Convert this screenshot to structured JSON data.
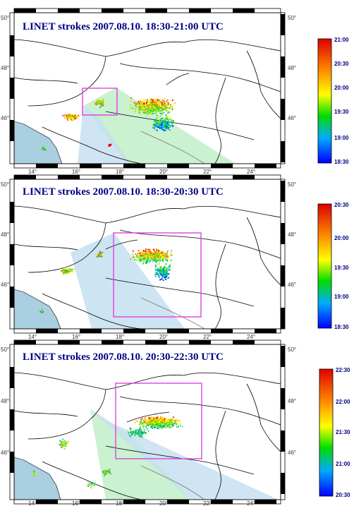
{
  "colors": {
    "title": "#000088",
    "frame": "#000000",
    "box": "#e040e0",
    "sea": "#a9cfe0",
    "cone_green": "#b8ecc0",
    "cone_blue": "#c4dff0",
    "colorbar_label": "#000080"
  },
  "x_tick_labels": [
    "14°",
    "16°",
    "18°",
    "20°",
    "22°",
    "24°"
  ],
  "y_tick_labels": [
    "50°",
    "48°",
    "46°"
  ],
  "panels": [
    {
      "title": "LINET strokes 2007.08.10. 18:30-21:00 UTC",
      "colorbar": [
        "21:00",
        "20:30",
        "20:00",
        "19:30",
        "19:00",
        "18:30"
      ]
    },
    {
      "title": "LINET strokes 2007.08.10. 18:30-20:30 UTC",
      "colorbar": [
        "20:30",
        "20:00",
        "19:30",
        "19:00",
        "18:30"
      ]
    },
    {
      "title": "LINET strokes 2007.08.10. 20:30-22:30 UTC",
      "colorbar": [
        "22:30",
        "22:00",
        "21:30",
        "21:00",
        "20:30"
      ]
    }
  ]
}
